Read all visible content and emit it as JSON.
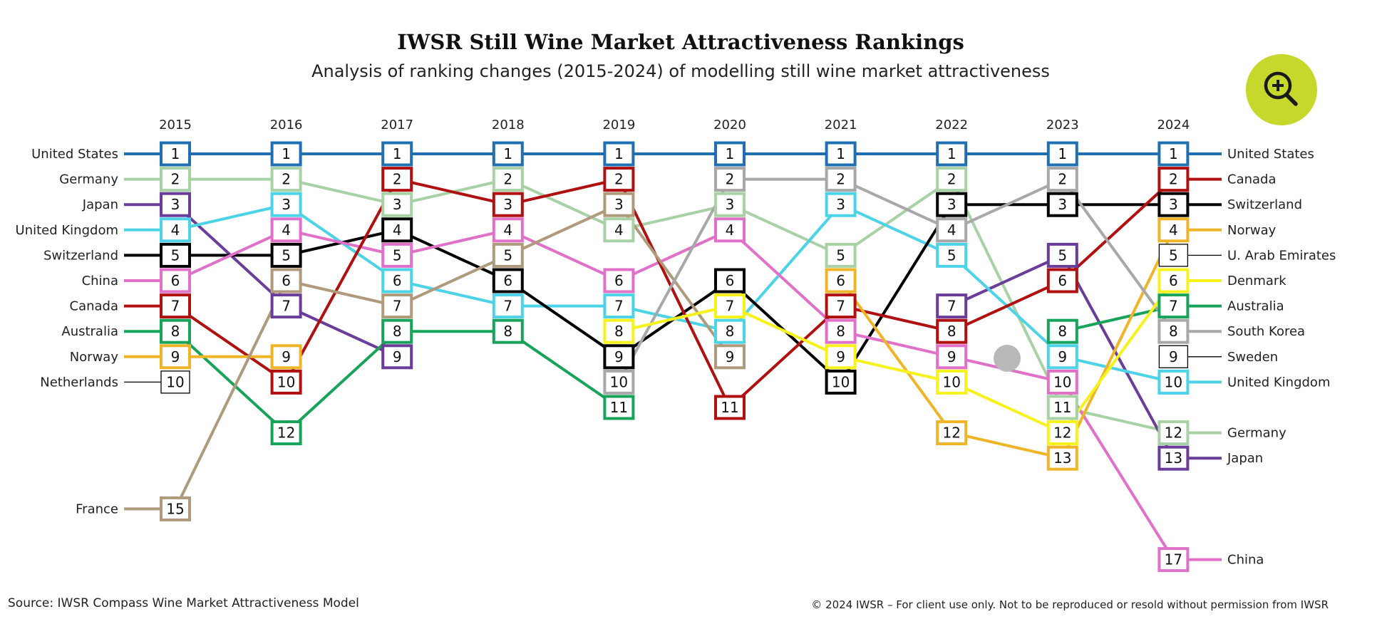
{
  "header": {
    "title": "IWSR Still Wine Market Attractiveness Rankings",
    "subtitle": "Analysis of ranking changes (2015-2024) of modelling still wine market attractiveness"
  },
  "zoom_button": {
    "icon": "zoom-in-icon",
    "color": "#c5d82b"
  },
  "footer": {
    "source": "Source: IWSR Compass Wine Market Attractiveness Model",
    "copyright": "© 2024 IWSR – For client use only. Not to be reproduced or resold without permission from IWSR"
  },
  "chart_data": {
    "type": "bump",
    "years": [
      "2015",
      "2016",
      "2017",
      "2018",
      "2019",
      "2020",
      "2021",
      "2022",
      "2023",
      "2024"
    ],
    "y_axis": "rank (1 = most attractive)",
    "series": [
      {
        "name": "United States",
        "color": "#1f6fb2",
        "ranks": [
          1,
          1,
          1,
          1,
          1,
          1,
          1,
          1,
          1,
          1
        ]
      },
      {
        "name": "Germany",
        "color": "#a9d1a6",
        "ranks": [
          2,
          2,
          3,
          2,
          4,
          3,
          5,
          2,
          11,
          12
        ]
      },
      {
        "name": "Japan",
        "color": "#6a3d9a",
        "ranks": [
          3,
          7,
          9,
          null,
          null,
          null,
          null,
          7,
          5,
          13
        ]
      },
      {
        "name": "United Kingdom",
        "color": "#4dd3e8",
        "ranks": [
          4,
          3,
          6,
          7,
          7,
          8,
          3,
          5,
          9,
          10
        ]
      },
      {
        "name": "Switzerland",
        "color": "#000000",
        "ranks": [
          5,
          5,
          4,
          6,
          9,
          6,
          10,
          3,
          3,
          3
        ]
      },
      {
        "name": "China",
        "color": "#e070c8",
        "ranks": [
          6,
          4,
          5,
          4,
          6,
          4,
          8,
          9,
          10,
          17
        ]
      },
      {
        "name": "Canada",
        "color": "#b01010",
        "ranks": [
          7,
          10,
          2,
          3,
          2,
          11,
          7,
          8,
          6,
          2
        ]
      },
      {
        "name": "Australia",
        "color": "#17a35a",
        "ranks": [
          8,
          12,
          8,
          8,
          11,
          null,
          null,
          null,
          8,
          7
        ]
      },
      {
        "name": "Norway",
        "color": "#f0b429",
        "ranks": [
          9,
          9,
          null,
          null,
          null,
          null,
          6,
          12,
          13,
          4
        ]
      },
      {
        "name": "Netherlands",
        "color": "#000000",
        "ranks": [
          10,
          null,
          null,
          null,
          null,
          null,
          null,
          null,
          null,
          null
        ],
        "thin": true
      },
      {
        "name": "France",
        "color": "#b09a7c",
        "ranks": [
          15,
          6,
          7,
          5,
          3,
          9,
          null,
          null,
          null,
          null
        ]
      },
      {
        "name": "South Korea",
        "color": "#a8a8a8",
        "ranks": [
          null,
          null,
          null,
          null,
          10,
          2,
          2,
          4,
          2,
          8
        ]
      },
      {
        "name": "Denmark",
        "color": "#f7f21b",
        "ranks": [
          null,
          null,
          null,
          null,
          8,
          7,
          9,
          10,
          12,
          6
        ]
      },
      {
        "name": "U. Arab Emirates",
        "color": "#000000",
        "ranks": [
          null,
          null,
          null,
          null,
          null,
          null,
          null,
          null,
          null,
          5
        ],
        "thin": true
      },
      {
        "name": "Sweden",
        "color": "#000000",
        "ranks": [
          null,
          null,
          null,
          null,
          null,
          null,
          null,
          null,
          null,
          9
        ],
        "thin": true
      }
    ],
    "left_labels": [
      {
        "text": "United States",
        "rank": 1,
        "series": "United States"
      },
      {
        "text": "Germany",
        "rank": 2,
        "series": "Germany"
      },
      {
        "text": "Japan",
        "rank": 3,
        "series": "Japan"
      },
      {
        "text": "United Kingdom",
        "rank": 4,
        "series": "United Kingdom"
      },
      {
        "text": "Switzerland",
        "rank": 5,
        "series": "Switzerland"
      },
      {
        "text": "China",
        "rank": 6,
        "series": "China"
      },
      {
        "text": "Canada",
        "rank": 7,
        "series": "Canada"
      },
      {
        "text": "Australia",
        "rank": 8,
        "series": "Australia"
      },
      {
        "text": "Norway",
        "rank": 9,
        "series": "Norway"
      },
      {
        "text": "Netherlands",
        "rank": 10,
        "series": "Netherlands"
      },
      {
        "text": "France",
        "rank": 15,
        "series": "France"
      }
    ],
    "right_labels": [
      {
        "text": "United States",
        "rank": 1,
        "series": "United States"
      },
      {
        "text": "Canada",
        "rank": 2,
        "series": "Canada"
      },
      {
        "text": "Switzerland",
        "rank": 3,
        "series": "Switzerland"
      },
      {
        "text": "Norway",
        "rank": 4,
        "series": "Norway"
      },
      {
        "text": "U. Arab Emirates",
        "rank": 5,
        "series": "U. Arab Emirates"
      },
      {
        "text": "Denmark",
        "rank": 6,
        "series": "Denmark"
      },
      {
        "text": "Australia",
        "rank": 7,
        "series": "Australia"
      },
      {
        "text": "South Korea",
        "rank": 8,
        "series": "South Korea"
      },
      {
        "text": "Sweden",
        "rank": 9,
        "series": "Sweden"
      },
      {
        "text": "United Kingdom",
        "rank": 10,
        "series": "United Kingdom"
      },
      {
        "text": "Germany",
        "rank": 12,
        "series": "Germany"
      },
      {
        "text": "Japan",
        "rank": 13,
        "series": "Japan"
      },
      {
        "text": "China",
        "rank": 17,
        "series": "China"
      }
    ]
  }
}
